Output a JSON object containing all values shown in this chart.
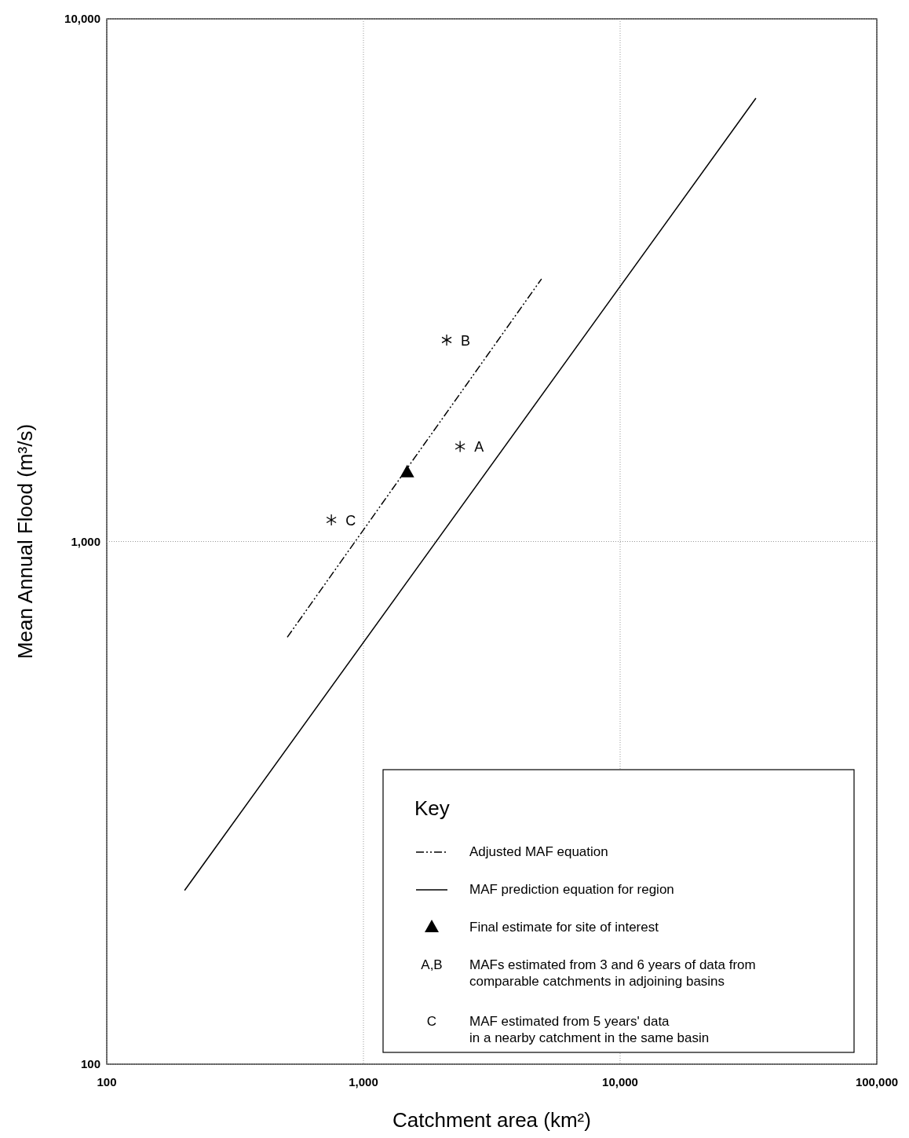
{
  "chart_data": {
    "type": "line",
    "xlabel": "Catchment area (km²)",
    "ylabel": "Mean Annual Flood (m³/s)",
    "log": "xy",
    "grid": true,
    "legend": "bottom right",
    "legend_title": "Key",
    "xlim": [
      100,
      100000
    ],
    "ylim": [
      100,
      10000
    ],
    "xticks": [
      100,
      {
        "value": 1000,
        "label": "1,000"
      },
      {
        "value": 10000,
        "label": "10,000"
      },
      {
        "value": 100000,
        "label": "100,000"
      }
    ],
    "yticks": [
      100,
      {
        "value": 1000,
        "label": "1,000"
      },
      {
        "value": 10000,
        "label": "10,000"
      }
    ],
    "series": [
      {
        "name": "Adjusted MAF equation",
        "line_style": "dashed",
        "marker": "none",
        "color": "#000000",
        "x": [
          505,
          4940
        ],
        "values": [
          656,
          3180
        ]
      },
      {
        "name": "MAF prediction equation for region",
        "line_style": "solid",
        "marker": "none",
        "color": "#000000",
        "x": [
          201,
          33800
        ],
        "values": [
          215,
          7050
        ]
      },
      {
        "name": "Final estimate for site of interest",
        "type": "scatter",
        "marker": "triangle",
        "color": "#000000",
        "x": [
          1480
        ],
        "values": [
          1360
        ]
      },
      {
        "type": "scatter",
        "marker": "cross",
        "color": "#000000",
        "x": [
          2380,
          2110
        ],
        "values": [
          1520,
          2430
        ]
      },
      {
        "type": "scatter",
        "marker": "cross",
        "color": "#000000",
        "x": [
          750
        ],
        "values": [
          1100
        ]
      }
    ],
    "annotations": [
      {
        "text": "A",
        "x": 2380,
        "y": 1520
      },
      {
        "text": "B",
        "x": 2110,
        "y": 2430
      },
      {
        "text": "C",
        "x": 750,
        "y": 1100
      },
      "A,B",
      "MAFs estimated from 3 and 6 years of data from\ncomparable catchments in adjoining basins",
      "C",
      "MAF estimated from 5 years' data\nin a nearby catchment in the same basin"
    ]
  }
}
